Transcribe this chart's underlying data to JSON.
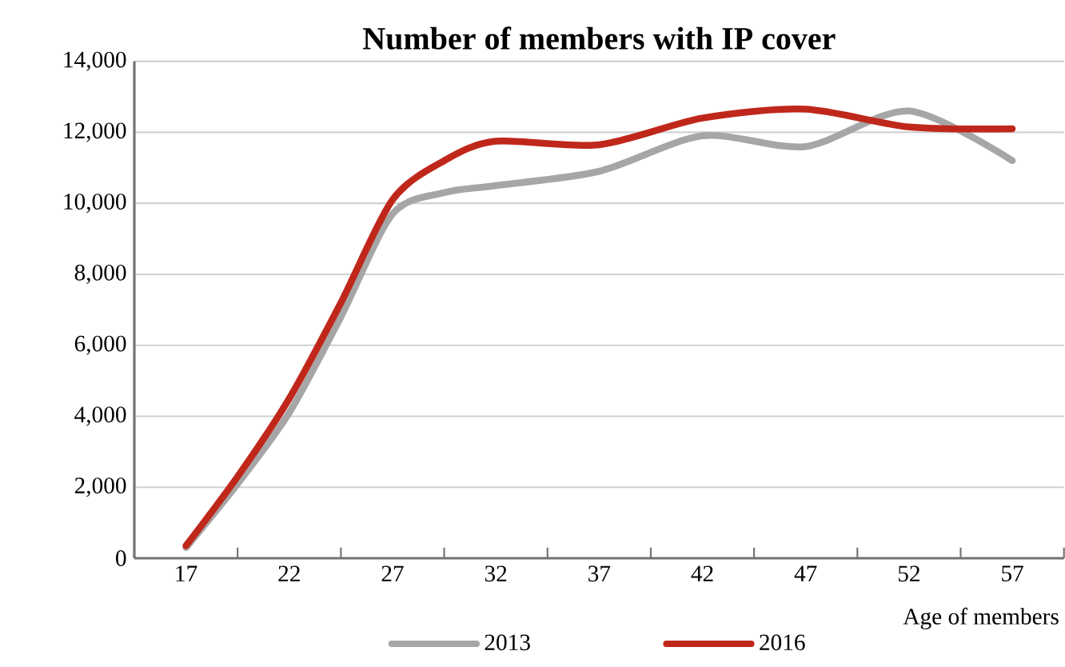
{
  "chart_data": {
    "type": "line",
    "title": "Number of members with IP cover",
    "xlabel": "Age of members",
    "x": [
      17,
      19.5,
      22,
      24.5,
      27,
      29.5,
      32,
      37,
      42,
      47,
      52,
      57
    ],
    "xlim": [
      14.5,
      59.5
    ],
    "xticks": [
      17,
      22,
      27,
      32,
      37,
      42,
      47,
      52,
      57
    ],
    "ylim": [
      0,
      14000
    ],
    "yticks": [
      {
        "value": 0,
        "label": "0"
      },
      {
        "value": 2000,
        "label": "2,000"
      },
      {
        "value": 4000,
        "label": "4,000"
      },
      {
        "value": 6000,
        "label": "6,000"
      },
      {
        "value": 8000,
        "label": "8,000"
      },
      {
        "value": 10000,
        "label": "10,000"
      },
      {
        "value": 12000,
        "label": "12,000"
      },
      {
        "value": 14000,
        "label": "14,000"
      }
    ],
    "grid": "y",
    "legend": "bottom",
    "marker": "none",
    "line_style": "solid",
    "series": [
      {
        "name": "2013",
        "color": "#a6a6a6",
        "values": [
          300,
          2100,
          4100,
          6800,
          9700,
          10300,
          10500,
          10900,
          11900,
          11600,
          12600,
          11200
        ]
      },
      {
        "name": "2016",
        "color": "#c0271b",
        "values": [
          350,
          2300,
          4500,
          7200,
          10100,
          11200,
          11750,
          11650,
          12400,
          12650,
          12150,
          12100
        ]
      }
    ]
  }
}
